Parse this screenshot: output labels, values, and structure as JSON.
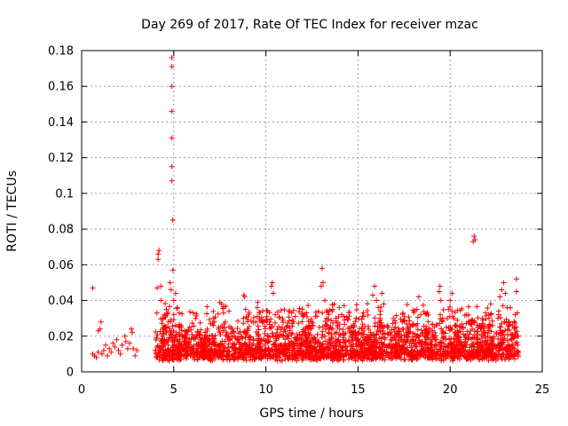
{
  "chart_data": {
    "type": "scatter",
    "title": "Day 269 of 2017, Rate Of TEC Index for receiver mzac",
    "xlabel": "GPS time / hours",
    "ylabel": "ROTI / TECUs",
    "xlim": [
      0,
      25
    ],
    "ylim": [
      0,
      0.18
    ],
    "xticks": [
      0,
      5,
      10,
      15,
      20,
      25
    ],
    "xtick_labels": [
      "0",
      "5",
      "10",
      "15",
      "20",
      "25"
    ],
    "yticks": [
      0,
      0.02,
      0.04,
      0.06,
      0.08,
      0.1,
      0.12,
      0.14,
      0.16,
      0.18
    ],
    "ytick_labels": [
      "0",
      "0.02",
      "0.04",
      "0.06",
      "0.08",
      "0.1",
      "0.12",
      "0.14",
      "0.16",
      "0.18"
    ],
    "grid": true,
    "marker": "+",
    "color": "#ff0000",
    "series": [
      {
        "name": "ROTI",
        "points": [
          [
            0.6,
            0.047
          ],
          [
            0.6,
            0.01
          ],
          [
            0.7,
            0.009
          ],
          [
            0.8,
            0.008
          ],
          [
            0.9,
            0.011
          ],
          [
            0.9,
            0.023
          ],
          [
            1.0,
            0.024
          ],
          [
            1.05,
            0.028
          ],
          [
            1.1,
            0.01
          ],
          [
            1.2,
            0.012
          ],
          [
            1.3,
            0.015
          ],
          [
            1.4,
            0.009
          ],
          [
            1.5,
            0.013
          ],
          [
            1.6,
            0.011
          ],
          [
            1.7,
            0.016
          ],
          [
            1.8,
            0.014
          ],
          [
            1.9,
            0.018
          ],
          [
            2.0,
            0.012
          ],
          [
            2.1,
            0.01
          ],
          [
            2.2,
            0.015
          ],
          [
            2.35,
            0.02
          ],
          [
            2.4,
            0.017
          ],
          [
            2.5,
            0.013
          ],
          [
            2.6,
            0.016
          ],
          [
            2.7,
            0.024
          ],
          [
            2.75,
            0.022
          ],
          [
            2.8,
            0.013
          ],
          [
            2.9,
            0.009
          ],
          [
            3.0,
            0.012
          ],
          [
            4.0,
            0.012
          ],
          [
            4.1,
            0.014
          ],
          [
            4.1,
            0.047
          ],
          [
            4.15,
            0.063
          ],
          [
            4.15,
            0.066
          ],
          [
            4.2,
            0.068
          ],
          [
            4.3,
            0.04
          ],
          [
            4.3,
            0.048
          ],
          [
            4.4,
            0.03
          ],
          [
            4.4,
            0.02
          ],
          [
            4.5,
            0.025
          ],
          [
            4.5,
            0.018
          ],
          [
            4.6,
            0.035
          ],
          [
            4.6,
            0.022
          ],
          [
            4.7,
            0.015
          ],
          [
            4.7,
            0.028
          ],
          [
            4.8,
            0.012
          ],
          [
            4.8,
            0.05
          ],
          [
            4.85,
            0.046
          ],
          [
            4.9,
            0.176
          ],
          [
            4.9,
            0.171
          ],
          [
            4.9,
            0.16
          ],
          [
            4.9,
            0.146
          ],
          [
            4.9,
            0.131
          ],
          [
            4.9,
            0.115
          ],
          [
            4.9,
            0.107
          ],
          [
            4.95,
            0.085
          ],
          [
            4.95,
            0.057
          ],
          [
            5.0,
            0.04
          ],
          [
            5.0,
            0.032
          ],
          [
            5.1,
            0.026
          ],
          [
            5.1,
            0.044
          ],
          [
            5.2,
            0.036
          ],
          [
            5.2,
            0.018
          ],
          [
            5.3,
            0.033
          ],
          [
            5.3,
            0.022
          ],
          [
            5.4,
            0.015
          ],
          [
            5.4,
            0.026
          ],
          [
            5.5,
            0.012
          ],
          [
            5.6,
            0.02
          ],
          [
            5.7,
            0.01
          ],
          [
            5.8,
            0.016
          ],
          [
            5.9,
            0.009
          ],
          [
            6.0,
            0.014
          ],
          [
            6.2,
            0.011
          ],
          [
            6.4,
            0.008
          ],
          [
            6.6,
            0.012
          ],
          [
            6.8,
            0.01
          ],
          [
            7.0,
            0.013
          ],
          [
            7.2,
            0.009
          ],
          [
            7.4,
            0.015
          ],
          [
            7.5,
            0.039
          ],
          [
            7.6,
            0.038
          ],
          [
            7.7,
            0.033
          ],
          [
            7.8,
            0.028
          ],
          [
            7.9,
            0.02
          ],
          [
            8.0,
            0.034
          ],
          [
            8.1,
            0.025
          ],
          [
            8.2,
            0.016
          ],
          [
            8.3,
            0.012
          ],
          [
            8.5,
            0.01
          ],
          [
            8.7,
            0.015
          ],
          [
            8.8,
            0.043
          ],
          [
            8.85,
            0.042
          ],
          [
            8.9,
            0.035
          ],
          [
            9.0,
            0.024
          ],
          [
            9.1,
            0.018
          ],
          [
            9.3,
            0.012
          ],
          [
            9.5,
            0.01
          ],
          [
            9.7,
            0.014
          ],
          [
            9.9,
            0.011
          ],
          [
            10.0,
            0.029
          ],
          [
            10.1,
            0.034
          ],
          [
            10.2,
            0.028
          ],
          [
            10.3,
            0.048
          ],
          [
            10.35,
            0.05
          ],
          [
            10.4,
            0.044
          ],
          [
            10.5,
            0.032
          ],
          [
            10.6,
            0.022
          ],
          [
            10.8,
            0.015
          ],
          [
            11.0,
            0.012
          ],
          [
            11.2,
            0.02
          ],
          [
            11.3,
            0.034
          ],
          [
            11.4,
            0.033
          ],
          [
            11.5,
            0.028
          ],
          [
            11.7,
            0.018
          ],
          [
            11.9,
            0.013
          ],
          [
            12.1,
            0.016
          ],
          [
            12.3,
            0.011
          ],
          [
            12.5,
            0.014
          ],
          [
            12.7,
            0.018
          ],
          [
            12.9,
            0.025
          ],
          [
            13.0,
            0.048
          ],
          [
            13.05,
            0.058
          ],
          [
            13.1,
            0.05
          ],
          [
            13.2,
            0.04
          ],
          [
            13.3,
            0.03
          ],
          [
            13.4,
            0.022
          ],
          [
            13.6,
            0.034
          ],
          [
            13.7,
            0.038
          ],
          [
            13.8,
            0.03
          ],
          [
            14.0,
            0.024
          ],
          [
            14.2,
            0.018
          ],
          [
            14.4,
            0.014
          ],
          [
            14.6,
            0.02
          ],
          [
            14.8,
            0.026
          ],
          [
            14.9,
            0.03
          ],
          [
            15.0,
            0.022
          ],
          [
            15.2,
            0.016
          ],
          [
            15.4,
            0.012
          ],
          [
            15.6,
            0.018
          ],
          [
            15.8,
            0.043
          ],
          [
            15.9,
            0.048
          ],
          [
            16.0,
            0.04
          ],
          [
            16.1,
            0.036
          ],
          [
            16.2,
            0.03
          ],
          [
            16.3,
            0.044
          ],
          [
            16.4,
            0.038
          ],
          [
            16.6,
            0.025
          ],
          [
            16.8,
            0.018
          ],
          [
            17.0,
            0.014
          ],
          [
            17.2,
            0.02
          ],
          [
            17.4,
            0.028
          ],
          [
            17.6,
            0.022
          ],
          [
            17.8,
            0.016
          ],
          [
            18.0,
            0.026
          ],
          [
            18.2,
            0.035
          ],
          [
            18.3,
            0.042
          ],
          [
            18.4,
            0.032
          ],
          [
            18.6,
            0.02
          ],
          [
            18.8,
            0.015
          ],
          [
            19.0,
            0.012
          ],
          [
            19.2,
            0.018
          ],
          [
            19.4,
            0.045
          ],
          [
            19.45,
            0.048
          ],
          [
            19.5,
            0.04
          ],
          [
            19.6,
            0.03
          ],
          [
            19.8,
            0.025
          ],
          [
            20.0,
            0.04
          ],
          [
            20.1,
            0.044
          ],
          [
            20.2,
            0.03
          ],
          [
            20.4,
            0.02
          ],
          [
            20.6,
            0.016
          ],
          [
            20.8,
            0.02
          ],
          [
            20.9,
            0.032
          ],
          [
            21.0,
            0.028
          ],
          [
            21.2,
            0.024
          ],
          [
            21.25,
            0.073
          ],
          [
            21.3,
            0.076
          ],
          [
            21.35,
            0.074
          ],
          [
            21.5,
            0.018
          ],
          [
            21.7,
            0.014
          ],
          [
            21.9,
            0.02
          ],
          [
            22.1,
            0.032
          ],
          [
            22.2,
            0.038
          ],
          [
            22.3,
            0.026
          ],
          [
            22.5,
            0.022
          ],
          [
            22.6,
            0.03
          ],
          [
            22.7,
            0.042
          ],
          [
            22.8,
            0.046
          ],
          [
            22.9,
            0.05
          ],
          [
            23.0,
            0.044
          ],
          [
            23.1,
            0.036
          ],
          [
            23.2,
            0.028
          ],
          [
            23.3,
            0.018
          ],
          [
            23.4,
            0.014
          ],
          [
            23.5,
            0.012
          ],
          [
            23.6,
            0.052
          ],
          [
            23.6,
            0.045
          ],
          [
            23.7,
            0.02
          ],
          [
            23.7,
            0.011
          ]
        ]
      }
    ],
    "band_noise": {
      "x_start": 4.0,
      "x_end": 23.7,
      "y_floor": 0.006,
      "y_typical": 0.014,
      "count": 2600
    }
  }
}
